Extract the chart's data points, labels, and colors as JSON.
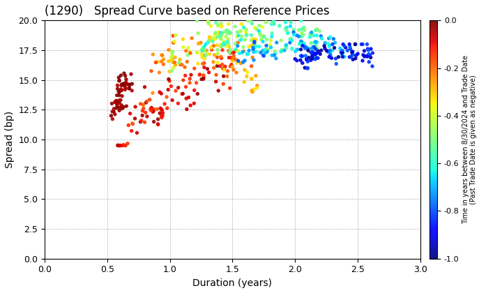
{
  "title": "(1290)   Spread Curve based on Reference Prices",
  "xlabel": "Duration (years)",
  "ylabel": "Spread (bp)",
  "colorbar_label": "Time in years between 8/30/2024 and Trade Date\n(Past Trade Date is given as negative)",
  "xlim": [
    0.0,
    3.0
  ],
  "ylim": [
    0.0,
    20.0
  ],
  "xticks": [
    0.0,
    0.5,
    1.0,
    1.5,
    2.0,
    2.5,
    3.0
  ],
  "yticks": [
    0.0,
    2.5,
    5.0,
    7.5,
    10.0,
    12.5,
    15.0,
    17.5,
    20.0
  ],
  "cmap": "jet",
  "clim": [
    -1.0,
    0.0
  ],
  "cticks": [
    0.0,
    -0.2,
    -0.4,
    -0.6,
    -0.8,
    -1.0
  ],
  "marker_size": 15,
  "background_color": "#ffffff",
  "grid_color": "#999999",
  "grid_linestyle": ":"
}
